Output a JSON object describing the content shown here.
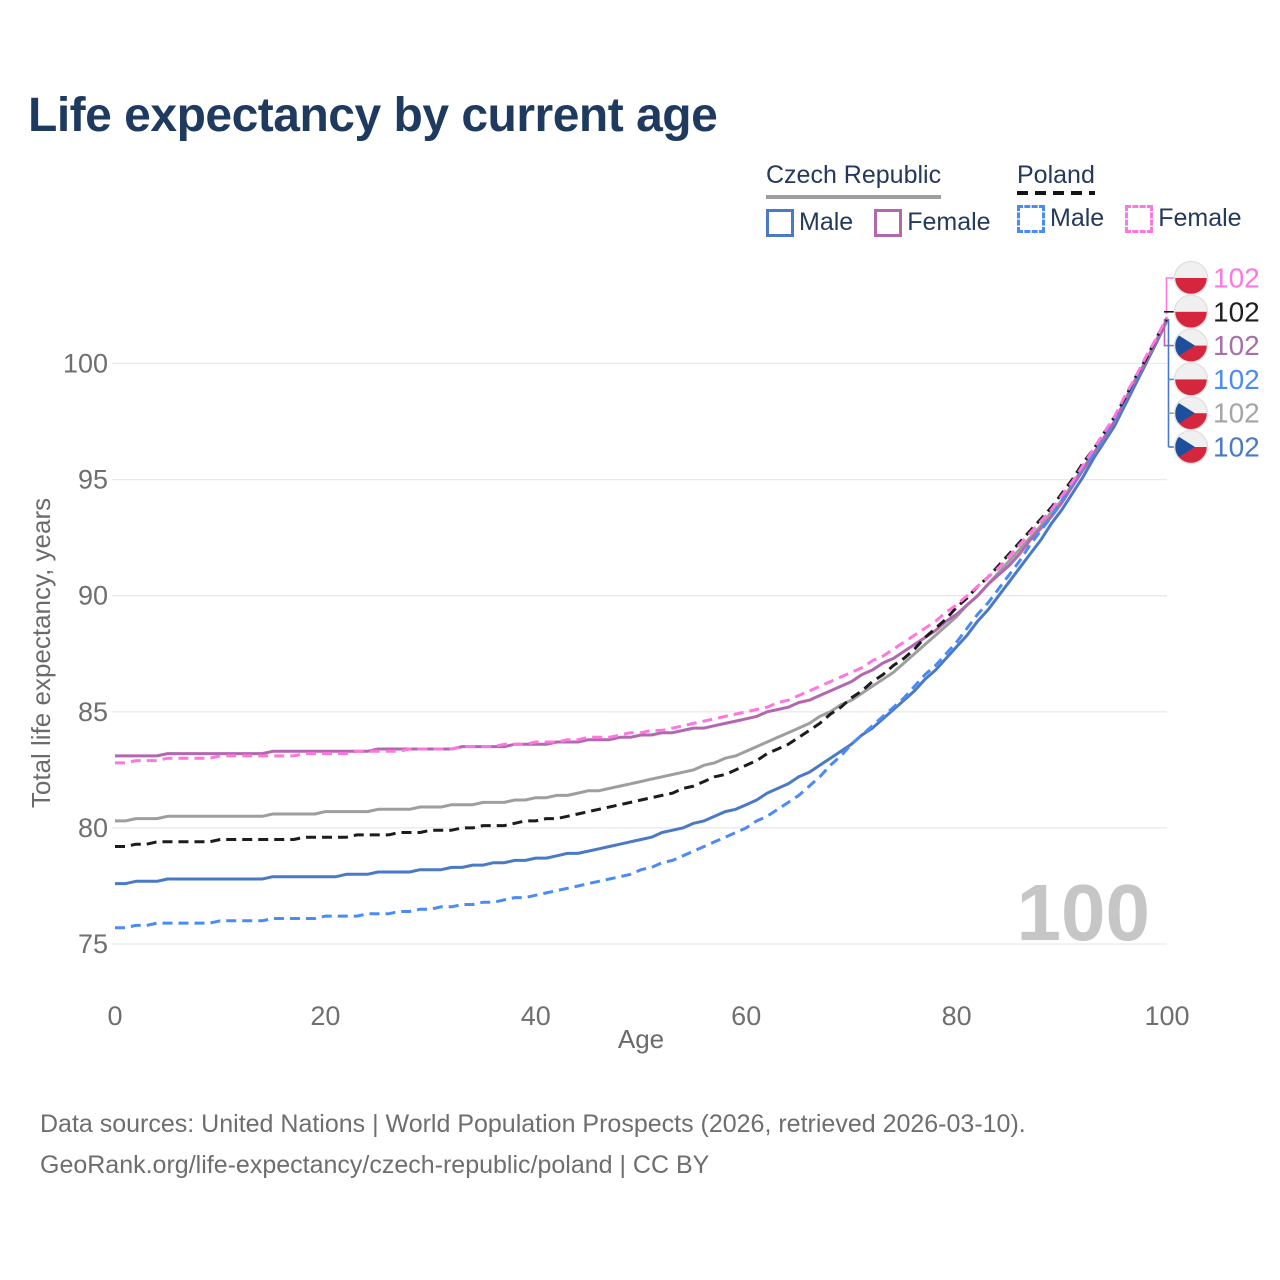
{
  "title": "Life expectancy by current age",
  "legend": {
    "groups": [
      {
        "label": "Czech Republic",
        "line_style": "solid",
        "underline_color": "#9e9e9e",
        "items": [
          {
            "label": "Male",
            "color": "#4a79c5"
          },
          {
            "label": "Female",
            "color": "#b268ae"
          }
        ]
      },
      {
        "label": "Poland",
        "line_style": "dashed",
        "underline_color": "#1a1a1a",
        "items": [
          {
            "label": "Male",
            "color": "#4b8bf7"
          },
          {
            "label": "Female",
            "color": "#ff77de"
          }
        ]
      }
    ]
  },
  "age_counter": "100",
  "footer": {
    "line1": "Data sources: United Nations | World Population Prospects (2026, retrieved 2026-03-10).",
    "line2": "GeoRank.org/life-expectancy/czech-republic/poland | CC BY"
  },
  "chart_data": {
    "type": "line",
    "title": "Life expectancy by current age",
    "xlabel": "Age",
    "ylabel": "Total life expectancy, years",
    "xlim": [
      0,
      100
    ],
    "ylim": [
      75,
      102.5
    ],
    "x_ticks": [
      0,
      20,
      40,
      60,
      80,
      100
    ],
    "y_ticks": [
      75,
      80,
      85,
      90,
      95,
      100
    ],
    "grid": true,
    "legend_position": "top-right",
    "x": [
      0,
      5,
      10,
      15,
      20,
      25,
      30,
      35,
      40,
      45,
      50,
      55,
      60,
      65,
      70,
      75,
      80,
      85,
      90,
      95,
      100
    ],
    "series": [
      {
        "name": "Poland — Female",
        "country": "Poland",
        "sex": "Female",
        "flag": "pl",
        "dashed": true,
        "color": "#ff77de",
        "label_color": "#ff77de",
        "end_label": "102",
        "values": [
          82.8,
          82.95,
          83.05,
          83.1,
          83.2,
          83.3,
          83.4,
          83.5,
          83.65,
          83.85,
          84.1,
          84.45,
          84.95,
          85.65,
          86.65,
          87.95,
          89.6,
          91.65,
          94.25,
          97.7,
          102.0
        ]
      },
      {
        "name": "Poland — Both sexes",
        "country": "Poland",
        "sex": "Both",
        "flag": "pl",
        "dashed": true,
        "color": "#1c1c1c",
        "label_color": "#1f1f1f",
        "end_label": "102",
        "values": [
          79.2,
          79.4,
          79.45,
          79.5,
          79.6,
          79.7,
          79.85,
          80.05,
          80.3,
          80.65,
          81.15,
          81.8,
          82.7,
          83.85,
          85.55,
          87.3,
          89.45,
          91.75,
          94.35,
          97.65,
          101.95
        ]
      },
      {
        "name": "Czech Republic — Female",
        "country": "Czech Republic",
        "sex": "Female",
        "flag": "cz",
        "dashed": false,
        "color": "#b268ae",
        "label_color": "#a86fa8",
        "end_label": "102",
        "values": [
          83.1,
          83.15,
          83.2,
          83.25,
          83.3,
          83.35,
          83.4,
          83.5,
          83.6,
          83.75,
          83.95,
          84.25,
          84.7,
          85.35,
          86.3,
          87.55,
          89.2,
          91.3,
          93.95,
          97.5,
          101.9
        ]
      },
      {
        "name": "Poland — Male",
        "country": "Poland",
        "sex": "Male",
        "flag": "pl",
        "dashed": true,
        "color": "#4b8bf7",
        "label_color": "#4b8bf7",
        "end_label": "102",
        "values": [
          75.7,
          75.9,
          75.95,
          76.05,
          76.15,
          76.3,
          76.5,
          76.75,
          77.1,
          77.55,
          78.15,
          78.95,
          80.0,
          81.35,
          83.55,
          85.6,
          88.0,
          90.9,
          94.05,
          97.55,
          101.95
        ]
      },
      {
        "name": "Czech Republic — Both sexes",
        "country": "Czech Republic",
        "sex": "Both",
        "flag": "cz",
        "dashed": false,
        "color": "#9e9e9e",
        "label_color": "#a5a5a5",
        "end_label": "102",
        "values": [
          80.3,
          80.45,
          80.5,
          80.55,
          80.65,
          80.75,
          80.9,
          81.05,
          81.25,
          81.55,
          81.95,
          82.5,
          83.25,
          84.25,
          85.5,
          87.05,
          89.1,
          91.45,
          94.1,
          97.5,
          101.9
        ]
      },
      {
        "name": "Czech Republic — Male",
        "country": "Czech Republic",
        "sex": "Male",
        "flag": "cz",
        "dashed": false,
        "color": "#4a79c5",
        "label_color": "#4a79c5",
        "end_label": "102",
        "values": [
          77.6,
          77.75,
          77.8,
          77.85,
          77.9,
          78.05,
          78.2,
          78.4,
          78.65,
          79.0,
          79.5,
          80.15,
          81.0,
          82.15,
          83.6,
          85.45,
          87.75,
          90.55,
          93.7,
          97.3,
          101.85
        ]
      }
    ],
    "flag_colors": {
      "white": "#f0f0f0",
      "red": "#d6263e",
      "czech_blue": "#1d4f9c",
      "ring": "#e2e2e2"
    },
    "style": {
      "grid_color": "#e9e9e9",
      "tick_color": "#6f6f6f",
      "axis_label_color": "#6b6b6b",
      "counter_color": "#c6c6c6"
    }
  }
}
